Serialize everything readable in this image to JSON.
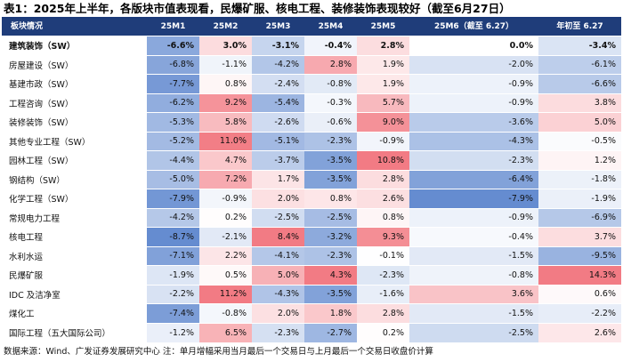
{
  "title": "表1：2025年上半年，各版块市值表现看，民爆矿服、核电工程、装修装饰表现较好（截至6月27日）",
  "table": {
    "headers": [
      "板块情况",
      "25M1",
      "25M2",
      "25M3",
      "25M4",
      "25M5",
      "25M6（截至 6.27）",
      "年初至 6.27"
    ],
    "rows": [
      {
        "name": "建筑装饰（SW）",
        "values": [
          "-6.6%",
          "3.0%",
          "-3.1%",
          "-0.4%",
          "2.8%",
          "0.0%",
          "-3.4%"
        ],
        "nums": [
          -6.6,
          3.0,
          -3.1,
          -0.4,
          2.8,
          0.0,
          -3.4
        ],
        "bold": true
      },
      {
        "name": "房屋建设（SW）",
        "values": [
          "-6.8%",
          "-1.1%",
          "-4.2%",
          "2.8%",
          "1.9%",
          "-2.0%",
          "-6.1%"
        ],
        "nums": [
          -6.8,
          -1.1,
          -4.2,
          2.8,
          1.9,
          -2.0,
          -6.1
        ]
      },
      {
        "name": "基建市政（SW）",
        "values": [
          "-7.7%",
          "0.8%",
          "-2.4%",
          "-0.8%",
          "1.9%",
          "-0.9%",
          "-6.6%"
        ],
        "nums": [
          -7.7,
          0.8,
          -2.4,
          -0.8,
          1.9,
          -0.9,
          -6.6
        ]
      },
      {
        "name": "工程咨询（SW）",
        "values": [
          "-6.2%",
          "9.2%",
          "-5.4%",
          "-0.3%",
          "5.7%",
          "-0.9%",
          "3.8%"
        ],
        "nums": [
          -6.2,
          9.2,
          -5.4,
          -0.3,
          5.7,
          -0.9,
          3.8
        ]
      },
      {
        "name": "装修装饰（SW）",
        "values": [
          "-5.3%",
          "5.8%",
          "-2.6%",
          "-0.6%",
          "9.0%",
          "-3.6%",
          "5.0%"
        ],
        "nums": [
          -5.3,
          5.8,
          -2.6,
          -0.6,
          9.0,
          -3.6,
          5.0
        ]
      },
      {
        "name": "其他专业工程（SW）",
        "values": [
          "-5.2%",
          "11.0%",
          "-5.1%",
          "-2.3%",
          "-0.9%",
          "-4.3%",
          "-0.5%"
        ],
        "nums": [
          -5.2,
          11.0,
          -5.1,
          -2.3,
          -0.9,
          -4.3,
          -0.5
        ]
      },
      {
        "name": "园林工程（SW）",
        "values": [
          "-4.4%",
          "4.7%",
          "-3.7%",
          "-3.5%",
          "10.8%",
          "-2.3%",
          "1.2%"
        ],
        "nums": [
          -4.4,
          4.7,
          -3.7,
          -3.5,
          10.8,
          -2.3,
          1.2
        ]
      },
      {
        "name": "钢结构（SW）",
        "values": [
          "-5.0%",
          "7.2%",
          "1.7%",
          "-3.5%",
          "2.8%",
          "-6.4%",
          "-1.8%"
        ],
        "nums": [
          -5.0,
          7.2,
          1.7,
          -3.5,
          2.8,
          -6.4,
          -1.8
        ]
      },
      {
        "name": "化学工程（SW）",
        "values": [
          "-7.9%",
          "-0.9%",
          "2.0%",
          "0.8%",
          "2.6%",
          "-7.9%",
          "-1.9%"
        ],
        "nums": [
          -7.9,
          -0.9,
          2.0,
          0.8,
          2.6,
          -7.9,
          -1.9
        ]
      },
      {
        "name": "常规电力工程",
        "values": [
          "-4.2%",
          "0.2%",
          "-2.5%",
          "-2.5%",
          "0.8%",
          "-0.9%",
          "-6.9%"
        ],
        "nums": [
          -4.2,
          0.2,
          -2.5,
          -2.5,
          0.8,
          -0.9,
          -6.9
        ]
      },
      {
        "name": "核电工程",
        "values": [
          "-8.7%",
          "-2.1%",
          "8.4%",
          "-3.2%",
          "9.3%",
          "-0.4%",
          "3.7%"
        ],
        "nums": [
          -8.7,
          -2.1,
          8.4,
          -3.2,
          9.3,
          -0.4,
          3.7
        ]
      },
      {
        "name": "水利水运",
        "values": [
          "-7.1%",
          "2.2%",
          "-4.1%",
          "-2.3%",
          "-0.1%",
          "-1.5%",
          "-9.5%"
        ],
        "nums": [
          -7.1,
          2.2,
          -4.1,
          -2.3,
          -0.1,
          -1.5,
          -9.5
        ]
      },
      {
        "name": "民爆矿服",
        "values": [
          "-1.9%",
          "0.5%",
          "5.0%",
          "4.3%",
          "-2.3%",
          "-0.8%",
          "14.3%"
        ],
        "nums": [
          -1.9,
          0.5,
          5.0,
          4.3,
          -2.3,
          -0.8,
          14.3
        ]
      },
      {
        "name": "IDC 及洁净室",
        "values": [
          "-2.2%",
          "11.2%",
          "-4.3%",
          "-3.5%",
          "-1.6%",
          "3.6%",
          "0.6%"
        ],
        "nums": [
          -2.2,
          11.2,
          -4.3,
          -3.5,
          -1.6,
          3.6,
          0.6
        ]
      },
      {
        "name": "煤化工",
        "values": [
          "-7.4%",
          "-0.8%",
          "2.0%",
          "1.8%",
          "2.8%",
          "-1.5%",
          "-2.2%"
        ],
        "nums": [
          -7.4,
          -0.8,
          2.0,
          1.8,
          2.8,
          -1.5,
          -2.2
        ]
      },
      {
        "name": "国际工程（五大国际公司）",
        "values": [
          "-1.2%",
          "6.5%",
          "-2.3%",
          "-2.7%",
          "0.2%",
          "-2.5%",
          "2.6%"
        ],
        "nums": [
          -1.2,
          6.5,
          -2.3,
          -2.7,
          0.2,
          -2.5,
          2.6
        ]
      }
    ]
  },
  "footer": "数据来源：Wind、广发证券发展研究中心  注：单月增幅采用当月最后一个交易日与上月最后一个交易日收盘价计算",
  "colors": {
    "header_bg": "#1f3d7a",
    "positive": "#f0646e",
    "negative": "#4a78c8",
    "neutral": "#ffffff"
  }
}
